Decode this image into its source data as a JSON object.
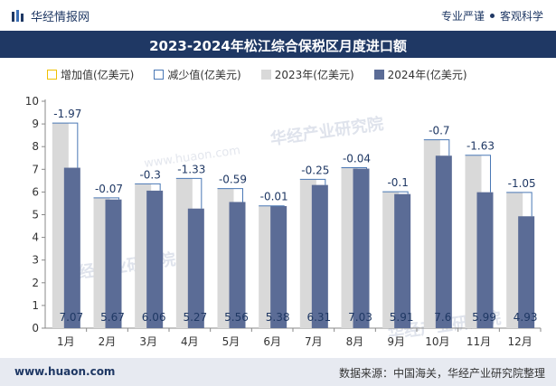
{
  "header": {
    "brand_text": "华经情报网",
    "slogan_left": "专业严谨",
    "slogan_right": "客观科学"
  },
  "title": "2023-2024年松江综合保税区月度进口额",
  "legend": {
    "increase": "增加值(亿美元)",
    "decrease": "减少值(亿美元)",
    "y2023": "2023年(亿美元)",
    "y2024": "2024年(亿美元)"
  },
  "watermark": {
    "text_cn": "华经产业研究院",
    "text_url": "www.huaon.com"
  },
  "footer": {
    "website": "www.huaon.com",
    "source": "数据来源：中国海关，华经产业研究院整理"
  },
  "colors": {
    "header_bg": "#1f3864",
    "bar_2023": "#d9d9d9",
    "bar_2024": "#5b6c96",
    "decrease_outline": "#4a78b5",
    "increase_outline": "#f0c000",
    "value_label_2024": "#1f3864",
    "diff_label": "#1f3864",
    "footer_bg": "#e7eaf1"
  },
  "chart_data": {
    "type": "bar",
    "title": "2023-2024年松江综合保税区月度进口额",
    "categories": [
      "1月",
      "2月",
      "3月",
      "4月",
      "5月",
      "6月",
      "7月",
      "8月",
      "9月",
      "10月",
      "11月",
      "12月"
    ],
    "series": [
      {
        "name": "2023年(亿美元)",
        "values": [
          9.04,
          5.74,
          6.36,
          6.6,
          6.15,
          5.39,
          6.56,
          7.07,
          6.01,
          8.3,
          7.62,
          5.98
        ]
      },
      {
        "name": "2024年(亿美元)",
        "values": [
          7.07,
          5.67,
          6.06,
          5.27,
          5.56,
          5.38,
          6.31,
          7.03,
          5.91,
          7.6,
          5.99,
          4.93
        ]
      }
    ],
    "diff_labels": [
      "-1.97",
      "-0.07",
      "-0.3",
      "-1.33",
      "-0.59",
      "-0.01",
      "-0.25",
      "-0.04",
      "-0.1",
      "-0.7",
      "-1.63",
      "-1.05"
    ],
    "value_labels_2024": [
      "7.07",
      "5.67",
      "6.06",
      "5.27",
      "5.56",
      "5.38",
      "6.31",
      "7.03",
      "5.91",
      "7.6",
      "5.99",
      "4.93"
    ],
    "ylim": [
      0,
      10
    ],
    "yticks": [
      0,
      1,
      2,
      3,
      4,
      5,
      6,
      7,
      8,
      9,
      10
    ],
    "xlabel": "",
    "ylabel": "",
    "grid": false,
    "legend_position": "top"
  }
}
